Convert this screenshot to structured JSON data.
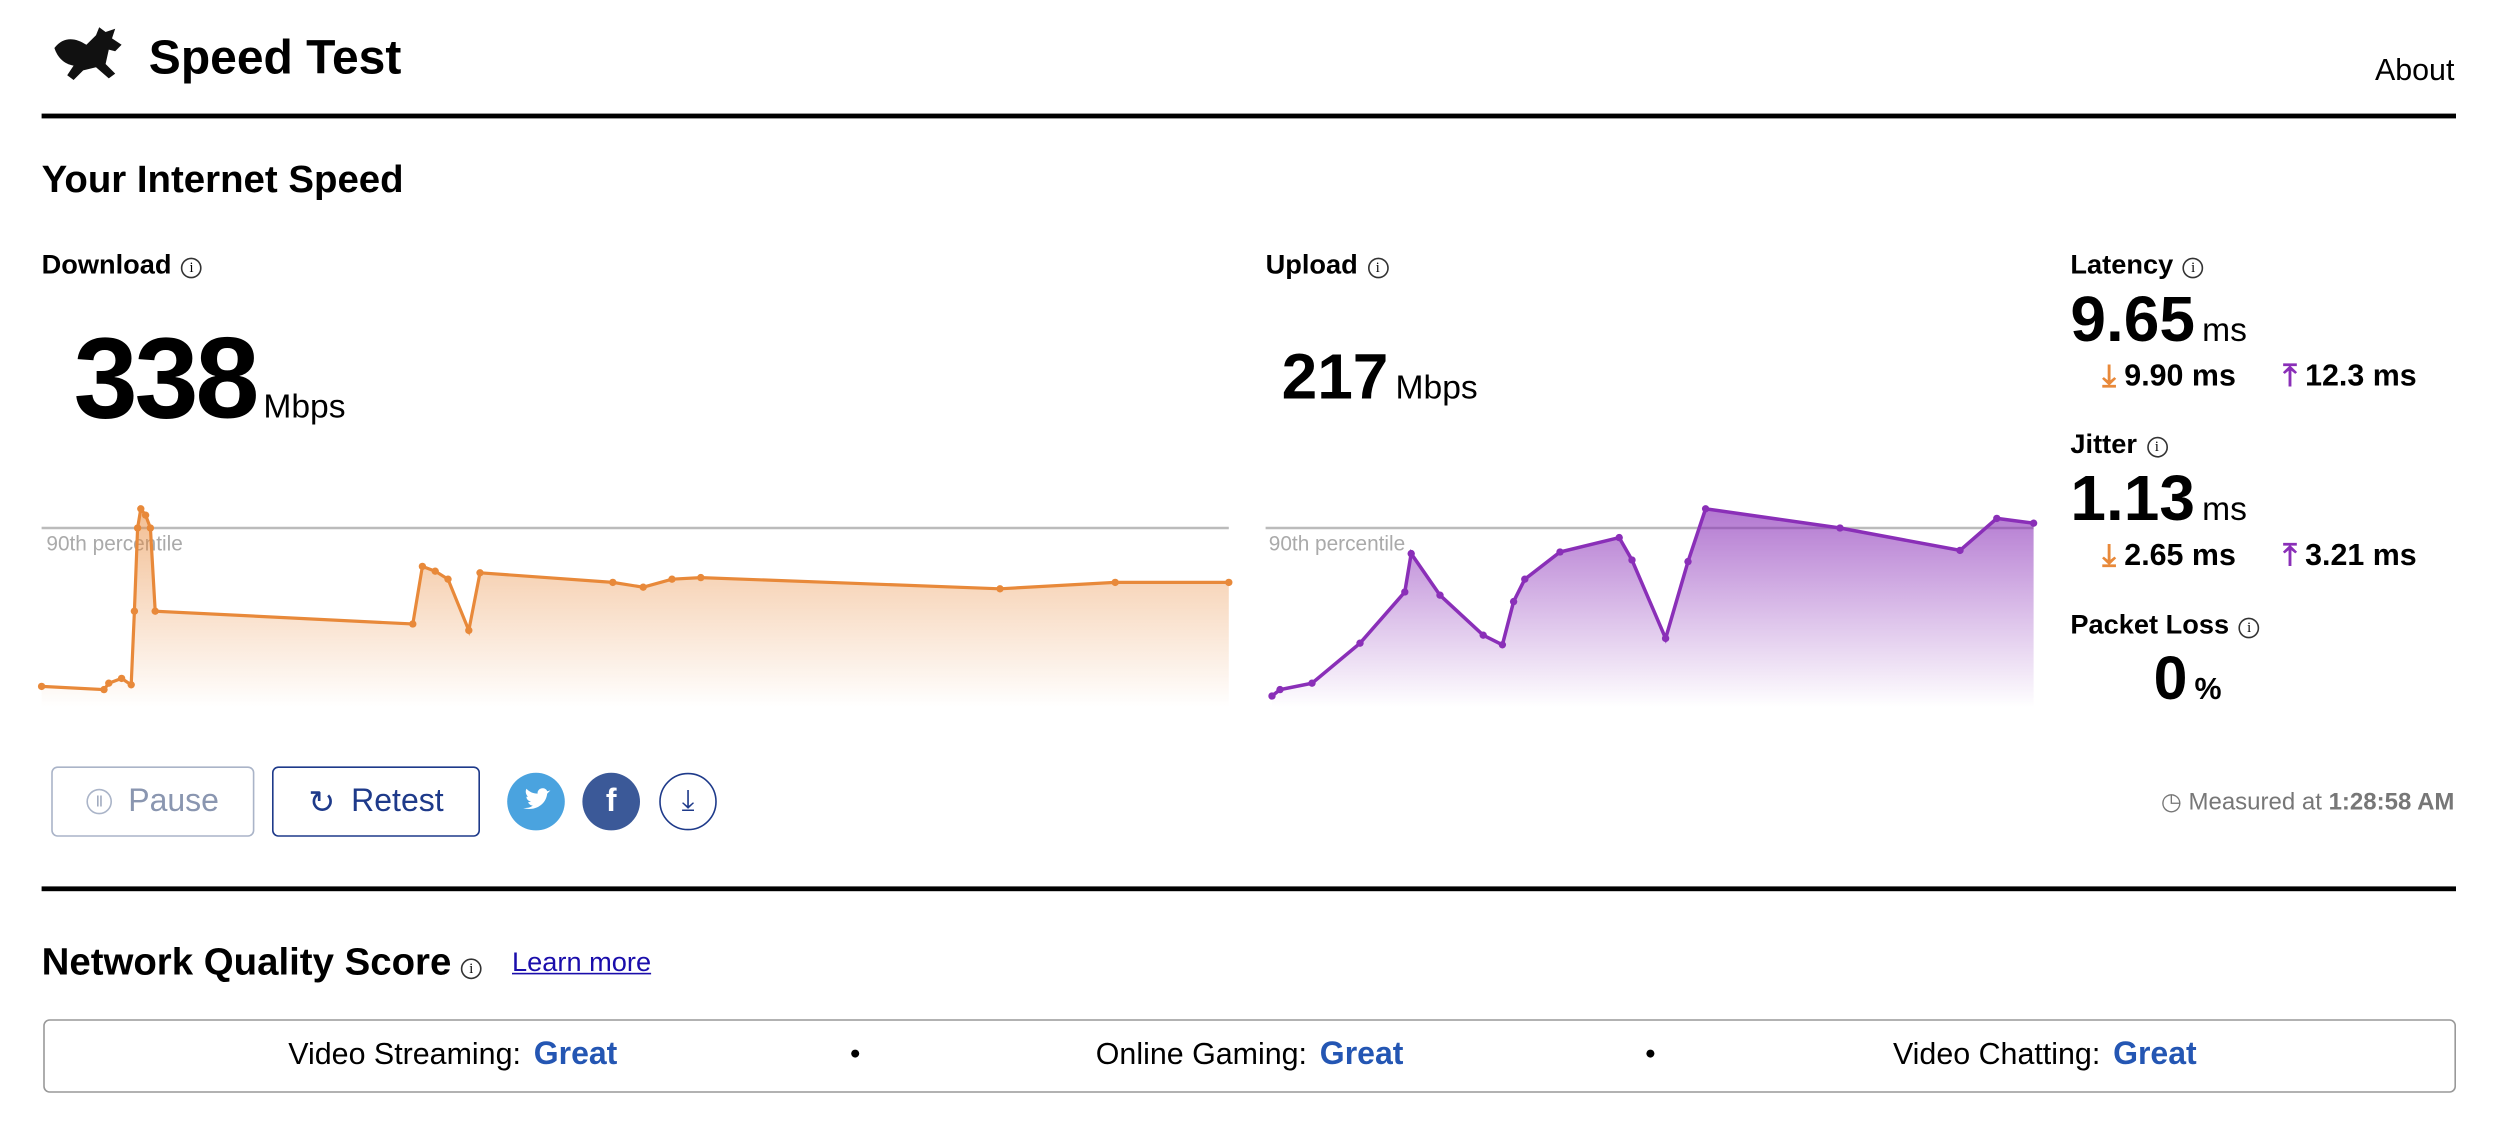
{
  "header": {
    "title": "Speed Test",
    "nav": "About"
  },
  "section_title": "Your Internet Speed",
  "download": {
    "label": "Download",
    "value": "338",
    "unit": "Mbps",
    "percentile_label": "90th percentile"
  },
  "upload": {
    "label": "Upload",
    "value": "217",
    "unit": "Mbps",
    "percentile_label": "90th percentile"
  },
  "latency": {
    "label": "Latency",
    "value": "9.65",
    "unit": "ms",
    "download": "9.90 ms",
    "upload": "12.3 ms"
  },
  "jitter": {
    "label": "Jitter",
    "value": "1.13",
    "unit": "ms",
    "download": "2.65 ms",
    "upload": "3.21 ms"
  },
  "packet_loss": {
    "label": "Packet Loss",
    "value": "0",
    "unit": "%"
  },
  "buttons": {
    "pause": "Pause",
    "retest": "Retest"
  },
  "measured": {
    "label": "Measured at",
    "time": "1:28:58 AM"
  },
  "quality": {
    "title": "Network Quality Score",
    "link": "Learn more",
    "items": [
      {
        "label": "Video Streaming:",
        "value": "Great"
      },
      {
        "label": "Online Gaming:",
        "value": "Great"
      },
      {
        "label": "Video Chatting:",
        "value": "Great"
      }
    ]
  }
}
